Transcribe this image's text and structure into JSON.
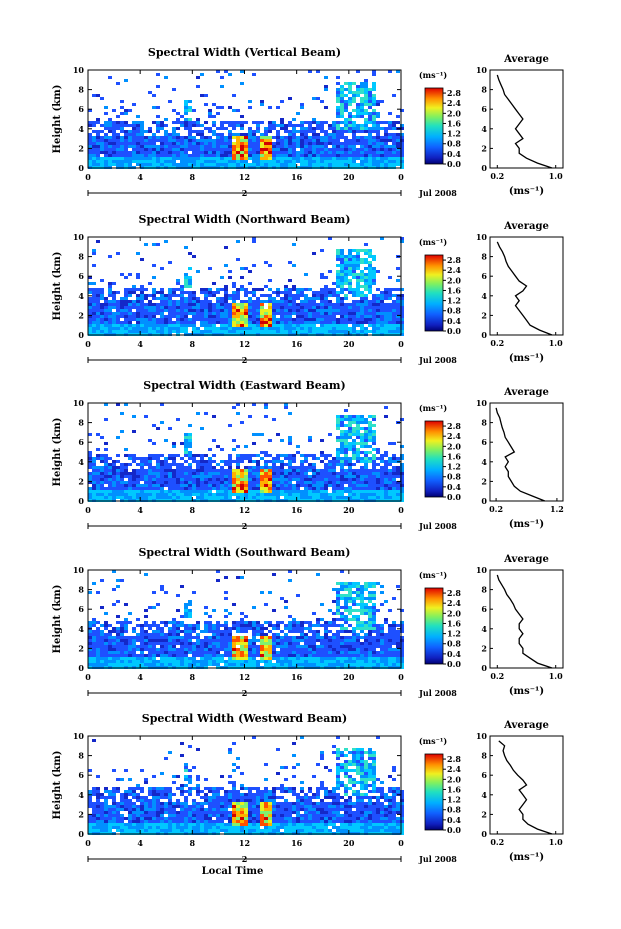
{
  "chart_data": [
    {
      "type": "heatmap",
      "title": "Spectral Width (Vertical Beam)",
      "ylabel": "Height (km)",
      "xlabel": "",
      "x_ticks": [
        "0",
        "4",
        "8",
        "12",
        "16",
        "20",
        "0"
      ],
      "y_ticks": [
        "0",
        "2",
        "4",
        "6",
        "8",
        "10"
      ],
      "xlim": [
        0,
        24
      ],
      "ylim": [
        0,
        10
      ],
      "date_label": "Jul 2008",
      "day_marker": "2",
      "colorbar": {
        "unit": "(ms⁻¹)",
        "ticks": [
          "0.0",
          "0.4",
          "0.8",
          "1.2",
          "1.6",
          "2.0",
          "2.4",
          "2.8"
        ],
        "range": [
          0,
          3.0
        ]
      },
      "profile": {
        "title": "Average",
        "xlabel": "(ms⁻¹)",
        "x_ticks": [
          "0.2",
          "1.0"
        ],
        "y_ticks": [
          "0",
          "2",
          "4",
          "6",
          "8",
          "10"
        ],
        "xlim": [
          0.1,
          1.1
        ],
        "ylim": [
          0,
          10
        ],
        "height": [
          0,
          0.5,
          1,
          1.5,
          2,
          2.5,
          3,
          3.5,
          4,
          4.5,
          5,
          5.5,
          6,
          6.5,
          7,
          7.5,
          8,
          8.5,
          9,
          9.5
        ],
        "width": [
          0.95,
          0.75,
          0.6,
          0.5,
          0.5,
          0.45,
          0.55,
          0.5,
          0.45,
          0.5,
          0.55,
          0.5,
          0.45,
          0.4,
          0.35,
          0.3,
          0.28,
          0.25,
          0.22,
          0.2
        ]
      }
    },
    {
      "type": "heatmap",
      "title": "Spectral Width (Northward Beam)",
      "ylabel": "Height (km)",
      "xlabel": "",
      "x_ticks": [
        "0",
        "4",
        "8",
        "12",
        "16",
        "20",
        "0"
      ],
      "y_ticks": [
        "0",
        "2",
        "4",
        "6",
        "8",
        "10"
      ],
      "xlim": [
        0,
        24
      ],
      "ylim": [
        0,
        10
      ],
      "date_label": "Jul 2008",
      "day_marker": "2",
      "colorbar": {
        "unit": "(ms⁻¹)",
        "ticks": [
          "0.0",
          "0.4",
          "0.8",
          "1.2",
          "1.6",
          "2.0",
          "2.4",
          "2.8"
        ],
        "range": [
          0,
          3.0
        ]
      },
      "profile": {
        "title": "Average",
        "xlabel": "(ms⁻¹)",
        "x_ticks": [
          "0.2",
          "1.0"
        ],
        "y_ticks": [
          "0",
          "2",
          "4",
          "6",
          "8",
          "10"
        ],
        "xlim": [
          0.1,
          1.1
        ],
        "ylim": [
          0,
          10
        ],
        "height": [
          0,
          0.5,
          1,
          1.5,
          2,
          2.5,
          3,
          3.5,
          4,
          4.5,
          5,
          5.5,
          6,
          6.5,
          7,
          7.5,
          8,
          8.5,
          9,
          9.5
        ],
        "width": [
          0.95,
          0.78,
          0.65,
          0.6,
          0.55,
          0.5,
          0.45,
          0.5,
          0.45,
          0.55,
          0.6,
          0.5,
          0.45,
          0.4,
          0.35,
          0.32,
          0.3,
          0.27,
          0.23,
          0.2
        ]
      }
    },
    {
      "type": "heatmap",
      "title": "Spectral Width (Eastward Beam)",
      "ylabel": "Height (km)",
      "xlabel": "",
      "x_ticks": [
        "0",
        "4",
        "8",
        "12",
        "16",
        "20",
        "0"
      ],
      "y_ticks": [
        "0",
        "2",
        "4",
        "6",
        "8",
        "10"
      ],
      "xlim": [
        0,
        24
      ],
      "ylim": [
        0,
        10
      ],
      "date_label": "Jul 2008",
      "day_marker": "2",
      "colorbar": {
        "unit": "(ms⁻¹)",
        "ticks": [
          "0.0",
          "0.4",
          "0.8",
          "1.2",
          "1.6",
          "2.0",
          "2.4",
          "2.8"
        ],
        "range": [
          0,
          3.0
        ]
      },
      "profile": {
        "title": "Average",
        "xlabel": "(ms⁻¹)",
        "x_ticks": [
          "0.2",
          "1.2"
        ],
        "y_ticks": [
          "0",
          "2",
          "4",
          "6",
          "8",
          "10"
        ],
        "xlim": [
          0.1,
          1.3
        ],
        "ylim": [
          0,
          10
        ],
        "height": [
          0,
          0.5,
          1,
          1.5,
          2,
          2.5,
          3,
          3.5,
          4,
          4.5,
          5,
          5.5,
          6,
          6.5,
          7,
          7.5,
          8,
          8.5,
          9,
          9.5
        ],
        "width": [
          1.0,
          0.8,
          0.6,
          0.5,
          0.45,
          0.4,
          0.4,
          0.35,
          0.4,
          0.35,
          0.5,
          0.45,
          0.4,
          0.35,
          0.33,
          0.3,
          0.28,
          0.26,
          0.22,
          0.2
        ]
      }
    },
    {
      "type": "heatmap",
      "title": "Spectral Width (Southward Beam)",
      "ylabel": "Height (km)",
      "xlabel": "",
      "x_ticks": [
        "0",
        "4",
        "8",
        "12",
        "16",
        "20",
        "0"
      ],
      "y_ticks": [
        "0",
        "2",
        "4",
        "6",
        "8",
        "10"
      ],
      "xlim": [
        0,
        24
      ],
      "ylim": [
        0,
        10
      ],
      "date_label": "Jul 2008",
      "day_marker": "2",
      "colorbar": {
        "unit": "(ms⁻¹)",
        "ticks": [
          "0.0",
          "0.4",
          "0.8",
          "1.2",
          "1.6",
          "2.0",
          "2.4",
          "2.8"
        ],
        "range": [
          0,
          3.0
        ]
      },
      "profile": {
        "title": "Average",
        "xlabel": "(ms⁻¹)",
        "x_ticks": [
          "0.2",
          "1.0"
        ],
        "y_ticks": [
          "0",
          "2",
          "4",
          "6",
          "8",
          "10"
        ],
        "xlim": [
          0.1,
          1.1
        ],
        "ylim": [
          0,
          10
        ],
        "height": [
          0,
          0.5,
          1,
          1.5,
          2,
          2.5,
          3,
          3.5,
          4,
          4.5,
          5,
          5.5,
          6,
          6.5,
          7,
          7.5,
          8,
          8.5,
          9,
          9.5
        ],
        "width": [
          0.95,
          0.75,
          0.65,
          0.55,
          0.55,
          0.5,
          0.5,
          0.55,
          0.5,
          0.5,
          0.55,
          0.5,
          0.45,
          0.42,
          0.38,
          0.33,
          0.3,
          0.26,
          0.22,
          0.2
        ]
      }
    },
    {
      "type": "heatmap",
      "title": "Spectral Width (Westward Beam)",
      "ylabel": "Height (km)",
      "xlabel": "Local Time",
      "x_ticks": [
        "0",
        "4",
        "8",
        "12",
        "16",
        "20",
        "0"
      ],
      "y_ticks": [
        "0",
        "2",
        "4",
        "6",
        "8",
        "10"
      ],
      "xlim": [
        0,
        24
      ],
      "ylim": [
        0,
        10
      ],
      "date_label": "Jul 2008",
      "day_marker": "2",
      "colorbar": {
        "unit": "(ms⁻¹)",
        "ticks": [
          "0.0",
          "0.4",
          "0.8",
          "1.2",
          "1.6",
          "2.0",
          "2.4",
          "2.8"
        ],
        "range": [
          0,
          3.0
        ]
      },
      "profile": {
        "title": "Average",
        "xlabel": "(ms⁻¹)",
        "x_ticks": [
          "0.2",
          "1.0"
        ],
        "y_ticks": [
          "0",
          "2",
          "4",
          "6",
          "8",
          "10"
        ],
        "xlim": [
          0.1,
          1.1
        ],
        "ylim": [
          0,
          10
        ],
        "height": [
          0,
          0.5,
          1,
          1.5,
          2,
          2.5,
          3,
          3.5,
          4,
          4.5,
          5,
          5.5,
          6,
          6.5,
          7,
          7.5,
          8,
          8.5,
          9,
          9.5
        ],
        "width": [
          0.95,
          0.75,
          0.62,
          0.55,
          0.55,
          0.5,
          0.55,
          0.6,
          0.55,
          0.5,
          0.6,
          0.55,
          0.48,
          0.42,
          0.38,
          0.33,
          0.3,
          0.28,
          0.3,
          0.22
        ]
      }
    }
  ]
}
